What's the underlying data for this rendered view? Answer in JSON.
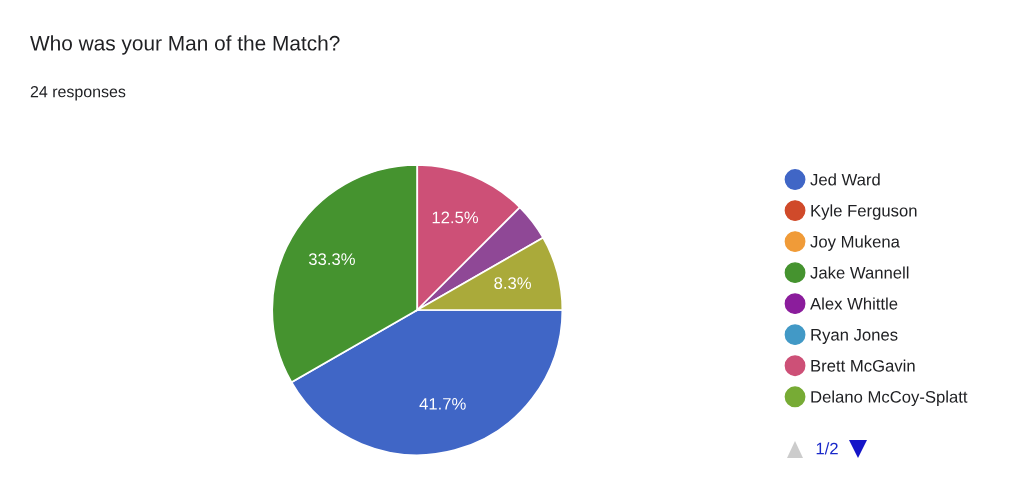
{
  "chart_data": {
    "type": "pie",
    "title": "Who was your Man of the Match?",
    "subtitle": "24 responses",
    "categories": [
      "Jed Ward",
      "Kyle Ferguson",
      "Joy Mukena",
      "Jake Wannell",
      "Alex Whittle",
      "Ryan Jones",
      "Brett McGavin",
      "Delano McCoy-Splatt",
      null,
      null
    ],
    "values": [
      41.7,
      0,
      0,
      33.3,
      0,
      0,
      12.5,
      0,
      4.2,
      8.3
    ],
    "colors": [
      "#4066c6",
      "#d04a2a",
      "#f09b38",
      "#45932f",
      "#8b1d9c",
      "#4299c6",
      "#cd5077",
      "#77ab35",
      "#8f4896",
      "#aaaa3a"
    ],
    "value_labels": [
      "41.7%",
      null,
      null,
      "33.3%",
      null,
      null,
      "12.5%",
      null,
      null,
      "8.3%"
    ],
    "legend": "right",
    "annotations": [
      "1/2"
    ]
  }
}
